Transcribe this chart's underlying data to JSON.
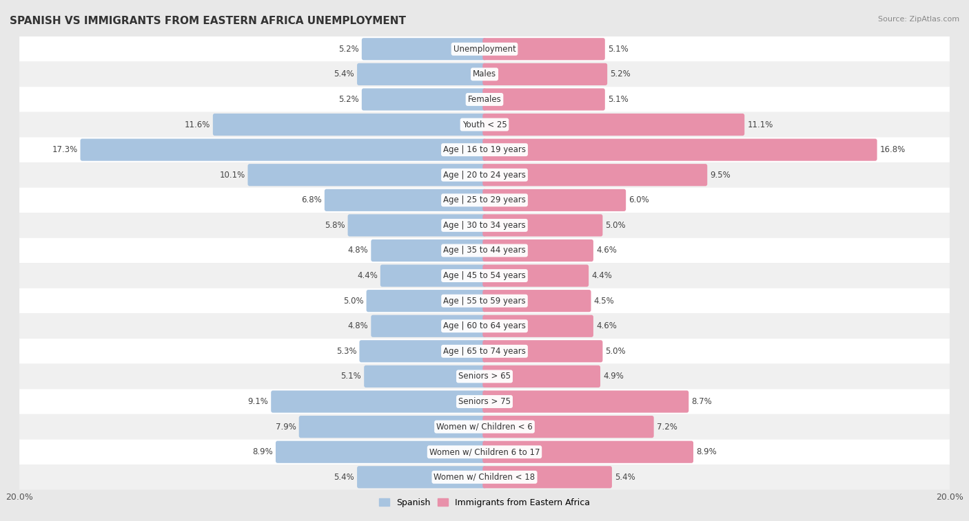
{
  "title": "SPANISH VS IMMIGRANTS FROM EASTERN AFRICA UNEMPLOYMENT",
  "source": "Source: ZipAtlas.com",
  "categories": [
    "Unemployment",
    "Males",
    "Females",
    "Youth < 25",
    "Age | 16 to 19 years",
    "Age | 20 to 24 years",
    "Age | 25 to 29 years",
    "Age | 30 to 34 years",
    "Age | 35 to 44 years",
    "Age | 45 to 54 years",
    "Age | 55 to 59 years",
    "Age | 60 to 64 years",
    "Age | 65 to 74 years",
    "Seniors > 65",
    "Seniors > 75",
    "Women w/ Children < 6",
    "Women w/ Children 6 to 17",
    "Women w/ Children < 18"
  ],
  "spanish": [
    5.2,
    5.4,
    5.2,
    11.6,
    17.3,
    10.1,
    6.8,
    5.8,
    4.8,
    4.4,
    5.0,
    4.8,
    5.3,
    5.1,
    9.1,
    7.9,
    8.9,
    5.4
  ],
  "eastern_africa": [
    5.1,
    5.2,
    5.1,
    11.1,
    16.8,
    9.5,
    6.0,
    5.0,
    4.6,
    4.4,
    4.5,
    4.6,
    5.0,
    4.9,
    8.7,
    7.2,
    8.9,
    5.4
  ],
  "spanish_color": "#a8c4e0",
  "eastern_africa_color": "#e891aa",
  "max_val": 20.0,
  "bg_outer": "#e8e8e8",
  "row_color_white": "#ffffff",
  "row_color_gray": "#f0f0f0",
  "legend_spanish": "Spanish",
  "legend_eastern_africa": "Immigrants from Eastern Africa"
}
